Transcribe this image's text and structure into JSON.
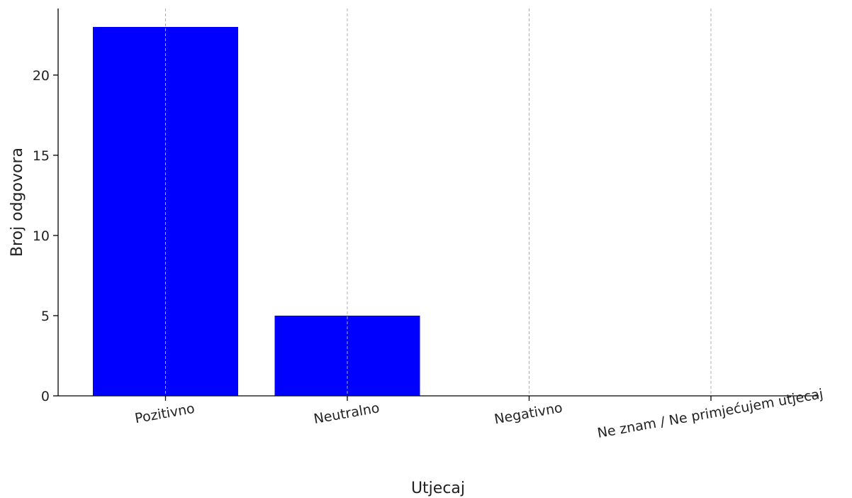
{
  "chart_data": {
    "type": "bar",
    "title": "",
    "xlabel": "Utjecaj",
    "ylabel": "Broj odgovora",
    "categories": [
      "Pozitivno",
      "Neutralno",
      "Negativno",
      "Ne znam / Ne primjećujem utjecaj"
    ],
    "values": [
      23,
      5,
      0,
      0
    ],
    "ylim": [
      0,
      24.15
    ],
    "yticks": [
      0,
      5,
      10,
      15,
      20
    ],
    "bar_color": "#0000ff",
    "grid": "vertical dashed lines at category positions",
    "legend": "none"
  }
}
